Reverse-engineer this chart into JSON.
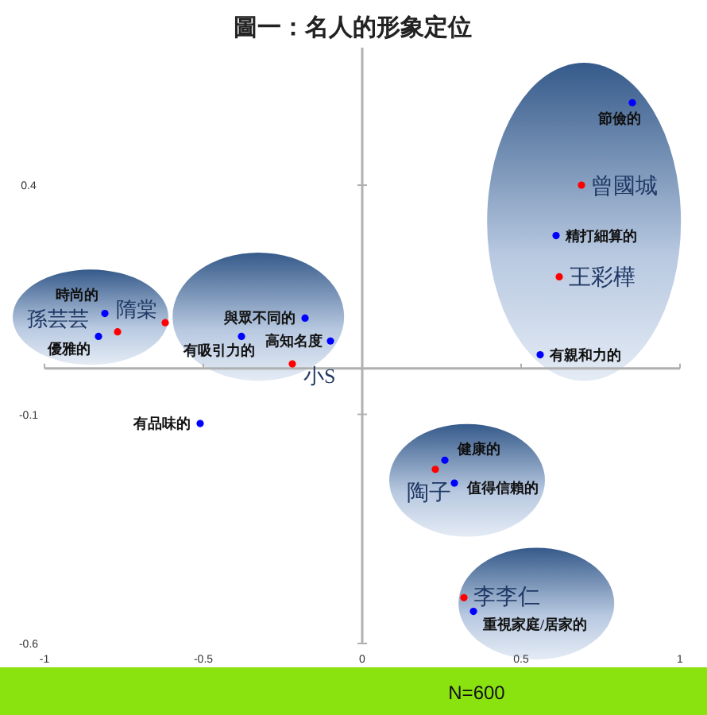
{
  "chart_data": {
    "type": "scatter",
    "title": "圖一：名人的形象定位",
    "xlim": [
      -1,
      1
    ],
    "ylim": [
      -0.6,
      0.7
    ],
    "xticks": [
      -1,
      -0.5,
      0,
      0.5,
      1
    ],
    "yticks": [
      0.4,
      -0.1,
      -0.6
    ],
    "marker": "circle",
    "series": [
      {
        "color": "#0000ff",
        "x": [
          0.85,
          0.61,
          0.56,
          -0.81,
          -0.83,
          -0.18,
          -0.38,
          -0.1,
          -0.51,
          0.26,
          0.29,
          0.35
        ],
        "values": [
          0.58,
          0.29,
          0.03,
          0.12,
          0.07,
          0.11,
          0.07,
          0.06,
          -0.12,
          -0.2,
          -0.25,
          -0.53
        ]
      },
      {
        "color": "#ff0000",
        "x": [
          0.69,
          0.62,
          -0.77,
          -0.62,
          -0.22,
          0.23,
          0.32
        ],
        "values": [
          0.4,
          0.2,
          0.08,
          0.1,
          0.01,
          -0.22,
          -0.5
        ]
      }
    ],
    "annotations": [
      {
        "text": "節儉的",
        "x": 0.85,
        "y": 0.58
      },
      {
        "text": "精打細算的",
        "x": 0.61,
        "y": 0.29
      },
      {
        "text": "有親和力的",
        "x": 0.56,
        "y": 0.03
      },
      {
        "text": "時尚的",
        "x": -0.81,
        "y": 0.12
      },
      {
        "text": "優雅的",
        "x": -0.83,
        "y": 0.07
      },
      {
        "text": "與眾不同的",
        "x": -0.18,
        "y": 0.11
      },
      {
        "text": "有吸引力的",
        "x": -0.38,
        "y": 0.07
      },
      {
        "text": "高知名度",
        "x": -0.1,
        "y": 0.06
      },
      {
        "text": "有品味的",
        "x": -0.51,
        "y": -0.12
      },
      {
        "text": "健康的",
        "x": 0.26,
        "y": -0.2
      },
      {
        "text": "值得信賴的",
        "x": 0.29,
        "y": -0.25
      },
      {
        "text": "重視家庭/居家的",
        "x": 0.35,
        "y": -0.53
      },
      {
        "text": "曾國城",
        "x": 0.69,
        "y": 0.4
      },
      {
        "text": "王彩樺",
        "x": 0.62,
        "y": 0.2
      },
      {
        "text": "孫芸芸",
        "x": -0.77,
        "y": 0.08
      },
      {
        "text": "隋棠",
        "x": -0.62,
        "y": 0.1
      },
      {
        "text": "小S",
        "x": -0.22,
        "y": 0.01
      },
      {
        "text": "陶子",
        "x": 0.23,
        "y": -0.22
      },
      {
        "text": "李李仁",
        "x": 0.32,
        "y": -0.5
      },
      "N=600"
    ]
  }
}
